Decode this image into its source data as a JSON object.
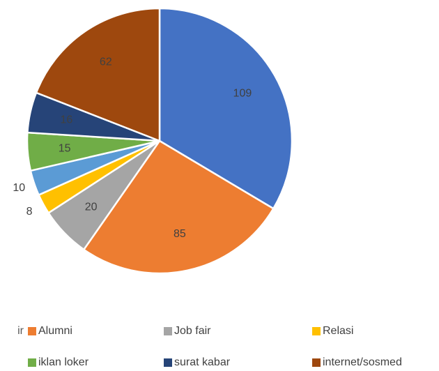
{
  "chart_data": {
    "type": "pie",
    "categories": [
      "ir",
      "Alumni",
      "Job fair",
      "Relasi",
      null,
      "iklan loker",
      "surat kabar",
      "internet/sosmed"
    ],
    "values": [
      109,
      85,
      20,
      8,
      10,
      15,
      16,
      62
    ],
    "colors": [
      "#4472c4",
      "#ed7d31",
      "#a5a5a5",
      "#ffc000",
      "#5b9bd5",
      "#70ad47",
      "#264478",
      "#9e480e"
    ]
  }
}
